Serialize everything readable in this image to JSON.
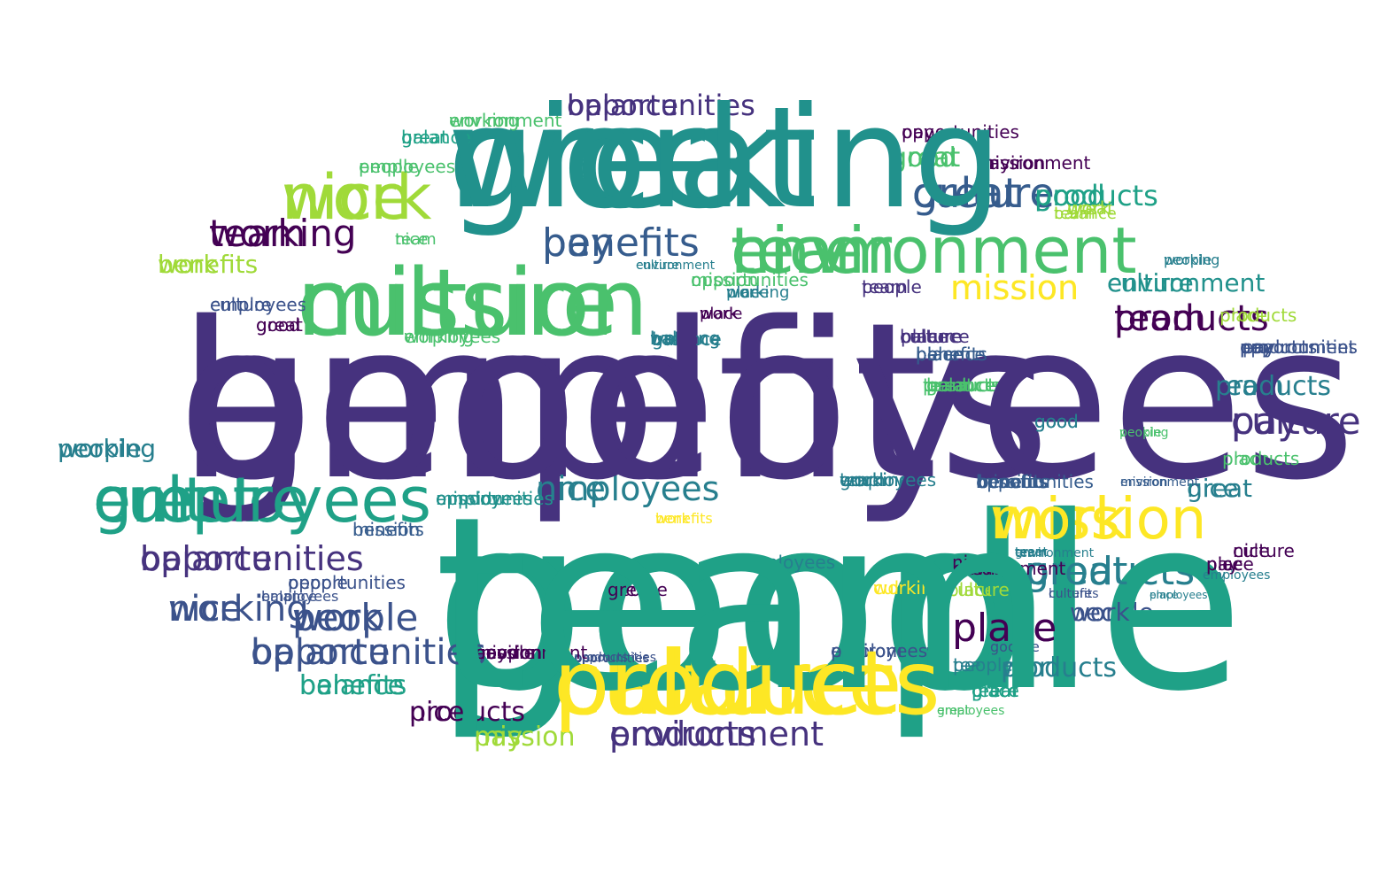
{
  "palette": {
    "p": "#46327e",
    "i": "#440154",
    "b": "#3b528b",
    "d": "#365c8d",
    "t": "#277f8e",
    "g": "#21918c",
    "e": "#1fa187",
    "m": "#4ac16d",
    "l": "#a0da39",
    "y": "#fde725"
  },
  "words": [
    {
      "text": "benefits"
    },
    {
      "text": "good"
    },
    {
      "text": "great"
    },
    {
      "text": "culture"
    },
    {
      "text": "balance"
    },
    {
      "text": "environment"
    },
    {
      "text": "employees"
    },
    {
      "text": "mission"
    },
    {
      "text": "nice"
    },
    {
      "text": "opportunities"
    },
    {
      "text": "benefits"
    },
    {
      "text": "working"
    },
    {
      "text": "great"
    },
    {
      "text": "good"
    },
    {
      "text": "products"
    },
    {
      "text": "team"
    },
    {
      "text": "place"
    },
    {
      "text": "work"
    },
    {
      "text": "mission"
    },
    {
      "text": "culture"
    },
    {
      "text": "employees"
    },
    {
      "text": "opportunities"
    },
    {
      "text": "nice"
    },
    {
      "text": "balance"
    },
    {
      "text": "pay"
    },
    {
      "text": "environment"
    },
    {
      "text": "people"
    },
    {
      "text": "balance"
    },
    {
      "text": "products"
    },
    {
      "text": "mission"
    },
    {
      "text": "benefits"
    },
    {
      "text": "work"
    },
    {
      "text": "great"
    },
    {
      "text": "people"
    },
    {
      "text": "nice"
    },
    {
      "text": "working"
    },
    {
      "text": "team"
    },
    {
      "text": "culture"
    },
    {
      "text": "environment"
    },
    {
      "text": "good"
    },
    {
      "text": "place"
    },
    {
      "text": "people"
    },
    {
      "text": "culture"
    },
    {
      "text": "good"
    },
    {
      "text": "great"
    },
    {
      "text": "employees"
    },
    {
      "text": "environment"
    },
    {
      "text": "mission"
    },
    {
      "text": "pay"
    },
    {
      "text": "employees"
    },
    {
      "text": "working"
    },
    {
      "text": "opportunities"
    },
    {
      "text": "benefits"
    },
    {
      "text": "opportunities"
    },
    {
      "text": "employees"
    },
    {
      "text": "place"
    },
    {
      "text": "environment"
    },
    {
      "text": "good"
    },
    {
      "text": "products"
    },
    {
      "text": "team"
    },
    {
      "text": "people"
    },
    {
      "text": "pay"
    },
    {
      "text": "great"
    },
    {
      "text": "working"
    },
    {
      "text": "employees"
    },
    {
      "text": "mission"
    },
    {
      "text": "great"
    },
    {
      "text": "mission"
    },
    {
      "text": "place"
    },
    {
      "text": "culture"
    },
    {
      "text": "balance"
    },
    {
      "text": "nice"
    },
    {
      "text": "balance"
    },
    {
      "text": "people"
    },
    {
      "text": "team"
    },
    {
      "text": "good"
    },
    {
      "text": "place"
    },
    {
      "text": "products"
    },
    {
      "text": "work"
    },
    {
      "text": "opportunities"
    },
    {
      "text": "benefits"
    },
    {
      "text": "culture"
    },
    {
      "text": "team"
    },
    {
      "text": "good"
    },
    {
      "text": "pay"
    },
    {
      "text": "place"
    },
    {
      "text": "mission"
    },
    {
      "text": "work"
    },
    {
      "text": "nice"
    },
    {
      "text": "team"
    },
    {
      "text": "benefits"
    },
    {
      "text": "work"
    },
    {
      "text": "working"
    },
    {
      "text": "balance"
    },
    {
      "text": "employees"
    },
    {
      "text": "nice"
    },
    {
      "text": "great"
    },
    {
      "text": "working"
    },
    {
      "text": "people"
    },
    {
      "text": "products"
    },
    {
      "text": "environment"
    },
    {
      "text": "culture"
    },
    {
      "text": "employees"
    },
    {
      "text": "opportunities"
    },
    {
      "text": "work"
    },
    {
      "text": "pay"
    },
    {
      "text": "place"
    },
    {
      "text": "balance"
    },
    {
      "text": "good"
    },
    {
      "text": "benefits"
    },
    {
      "text": "people"
    },
    {
      "text": "working"
    },
    {
      "text": "nice"
    },
    {
      "text": "nice"
    },
    {
      "text": "pay"
    },
    {
      "text": "good"
    },
    {
      "text": "employees"
    },
    {
      "text": "people"
    },
    {
      "text": "nice"
    },
    {
      "text": "mission"
    },
    {
      "text": "culture"
    },
    {
      "text": "team"
    },
    {
      "text": "great"
    },
    {
      "text": "work"
    },
    {
      "text": "work"
    },
    {
      "text": "balance"
    },
    {
      "text": "pay"
    },
    {
      "text": "team"
    },
    {
      "text": "culture"
    },
    {
      "text": "products"
    },
    {
      "text": "great"
    },
    {
      "text": "products"
    },
    {
      "text": "place"
    },
    {
      "text": "people"
    },
    {
      "text": "mission"
    },
    {
      "text": "environment"
    },
    {
      "text": "nice"
    },
    {
      "text": "balance"
    },
    {
      "text": "working"
    },
    {
      "text": "opportunities"
    },
    {
      "text": "culture"
    },
    {
      "text": "products"
    },
    {
      "text": "work"
    },
    {
      "text": "benefits"
    },
    {
      "text": "nice"
    },
    {
      "text": "pay"
    },
    {
      "text": "work"
    },
    {
      "text": "products"
    },
    {
      "text": "good"
    },
    {
      "text": "great"
    },
    {
      "text": "great"
    },
    {
      "text": "people"
    },
    {
      "text": "products"
    },
    {
      "text": "place"
    },
    {
      "text": "pay"
    },
    {
      "text": "mission"
    },
    {
      "text": "balance"
    },
    {
      "text": "team"
    },
    {
      "text": "employees"
    },
    {
      "text": "great"
    },
    {
      "text": "balance"
    },
    {
      "text": "people"
    },
    {
      "text": "working"
    },
    {
      "text": "environment"
    },
    {
      "text": "opportunities"
    },
    {
      "text": "opportunities"
    },
    {
      "text": "employees"
    },
    {
      "text": "people"
    },
    {
      "text": "mission"
    },
    {
      "text": "mission"
    },
    {
      "text": "balance"
    },
    {
      "text": "products"
    },
    {
      "text": "culture"
    },
    {
      "text": "good"
    },
    {
      "text": "balance"
    },
    {
      "text": "great"
    },
    {
      "text": "working"
    },
    {
      "text": "environment"
    },
    {
      "text": "place"
    },
    {
      "text": "team"
    },
    {
      "text": "place"
    },
    {
      "text": "benefits"
    },
    {
      "text": "work"
    },
    {
      "text": "environment"
    },
    {
      "text": "culture"
    },
    {
      "text": "good"
    },
    {
      "text": "working"
    },
    {
      "text": "culture"
    },
    {
      "text": "team"
    },
    {
      "text": "great"
    },
    {
      "text": "nice"
    },
    {
      "text": "good"
    },
    {
      "text": "products"
    },
    {
      "text": "great"
    },
    {
      "text": "benefits"
    },
    {
      "text": "opportunities"
    },
    {
      "text": "opportunities"
    },
    {
      "text": "working"
    },
    {
      "text": "people"
    },
    {
      "text": "pay"
    },
    {
      "text": "employees"
    },
    {
      "text": "benefits"
    },
    {
      "text": "pay"
    },
    {
      "text": "work"
    },
    {
      "text": "employees"
    },
    {
      "text": "environment"
    },
    {
      "text": "culture"
    },
    {
      "text": "place"
    },
    {
      "text": "good"
    },
    {
      "text": "work"
    },
    {
      "text": "mission"
    },
    {
      "text": "pay"
    },
    {
      "text": "team"
    },
    {
      "text": "people"
    },
    {
      "text": "nice"
    },
    {
      "text": "team"
    },
    {
      "text": "employees"
    },
    {
      "text": "balance"
    },
    {
      "text": "great"
    },
    {
      "text": "products"
    },
    {
      "text": "place"
    },
    {
      "text": "products"
    },
    {
      "text": "benefits"
    },
    {
      "text": "great"
    },
    {
      "text": "people"
    },
    {
      "text": "benefits"
    },
    {
      "text": "environment"
    },
    {
      "text": "employees"
    },
    {
      "text": "working"
    },
    {
      "text": "place"
    },
    {
      "text": "opportunities"
    },
    {
      "text": "environment"
    },
    {
      "text": "good"
    },
    {
      "text": "team"
    },
    {
      "text": "working"
    },
    {
      "text": "mission"
    },
    {
      "text": "products"
    },
    {
      "text": "nice"
    },
    {
      "text": "culture"
    },
    {
      "text": "work"
    }
  ]
}
